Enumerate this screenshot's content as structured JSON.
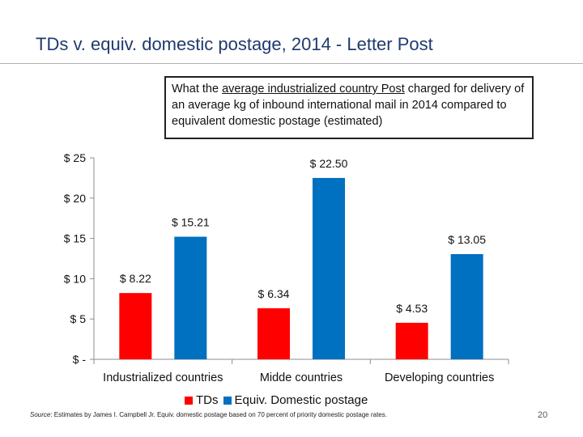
{
  "slide": {
    "title": "TDs v. equiv. domestic postage, 2014 - Letter Post",
    "caption": {
      "lead": "What the ",
      "underlined": "average industrialized country  Post",
      "rest": " charged for delivery of an average kg of inbound international mail in 2014 compared to equivalent domestic postage (estimated)"
    },
    "source_label": "Source",
    "source_text": ": Estimates by James I. Campbell Jr. Equiv. domestic postage based on 70 percent of priority domestic postage rates.",
    "page_number": "20"
  },
  "chart_data": {
    "type": "bar",
    "title": "",
    "categories": [
      "Industrialized countries",
      "Midde countries",
      "Developing countries"
    ],
    "series": [
      {
        "name": "TDs",
        "color": "#ff0000",
        "values": [
          8.22,
          6.34,
          4.53
        ],
        "labels": [
          "$ 8.22",
          "$ 6.34",
          "$ 4.53"
        ]
      },
      {
        "name": "Equiv. Domestic postage",
        "color": "#0070c0",
        "values": [
          15.21,
          22.5,
          13.05
        ],
        "labels": [
          "$ 15.21",
          "$ 22.50",
          "$ 13.05"
        ]
      }
    ],
    "y_ticks": [
      0,
      5,
      10,
      15,
      20,
      25
    ],
    "y_tick_labels": [
      "$ -",
      "$ 5",
      "$ 10",
      "$ 15",
      "$ 20",
      "$ 25"
    ],
    "ylim": [
      0,
      25
    ],
    "grid": false,
    "legend": "bottom"
  }
}
